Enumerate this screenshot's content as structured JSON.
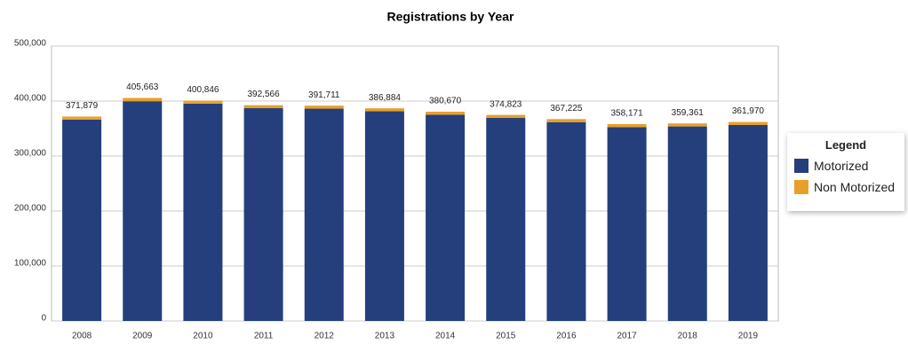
{
  "chart_data": {
    "type": "stacked_bar",
    "title": "Registrations by Year",
    "categories": [
      "2008",
      "2009",
      "2010",
      "2011",
      "2012",
      "2013",
      "2014",
      "2015",
      "2016",
      "2017",
      "2018",
      "2019"
    ],
    "series": [
      {
        "name": "Motorized",
        "color": "#243f7b",
        "values": [
          366379,
          399663,
          395346,
          387066,
          386211,
          381384,
          375170,
          369323,
          361725,
          352671,
          353861,
          356470
        ]
      },
      {
        "name": "Non Motorized",
        "color": "#e8a02a",
        "values": [
          5500,
          6000,
          5500,
          5500,
          5500,
          5500,
          5500,
          5500,
          5500,
          5500,
          5500,
          5500
        ]
      }
    ],
    "totals": [
      371879,
      405663,
      400846,
      392566,
      391711,
      386884,
      380670,
      374823,
      367225,
      358171,
      359361,
      361970
    ],
    "total_labels": [
      "371,879",
      "405,663",
      "400,846",
      "392,566",
      "391,711",
      "386,884",
      "380,670",
      "374,823",
      "367,225",
      "358,171",
      "359,361",
      "361,970"
    ],
    "ylim": [
      0,
      500000
    ],
    "yticks": [
      0,
      {
        "value": 100000,
        "label": "100,000"
      },
      {
        "value": 200000,
        "label": "200,000"
      },
      {
        "value": 300000,
        "label": "300,000"
      },
      {
        "value": 400000,
        "label": "400,000"
      },
      {
        "value": 500000,
        "label": "500,000"
      }
    ],
    "grid": true,
    "legend_title": "Legend"
  }
}
